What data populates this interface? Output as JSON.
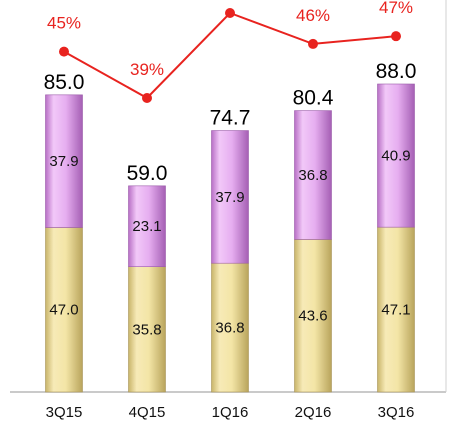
{
  "chart_data": {
    "type": "bar",
    "stacked": true,
    "categories": [
      "3Q15",
      "4Q15",
      "1Q16",
      "2Q16",
      "3Q16"
    ],
    "series": [
      {
        "values": [
          47.0,
          35.8,
          36.8,
          43.6,
          47.1
        ],
        "labels": [
          "47.0",
          "35.8",
          "36.8",
          "43.6",
          "47.1"
        ],
        "color": "#f2e3a0"
      },
      {
        "values": [
          37.9,
          23.1,
          37.9,
          36.8,
          40.9
        ],
        "labels": [
          "37.9",
          "23.1",
          "37.9",
          "36.8",
          "40.9"
        ],
        "color": "#e3a6ee"
      }
    ],
    "totals": [
      85.0,
      59.0,
      74.7,
      80.4,
      88.0
    ],
    "total_labels": [
      "85.0",
      "59.0",
      "74.7",
      "80.4",
      "88.0"
    ],
    "line": {
      "values": [
        45,
        39,
        50,
        46,
        47
      ],
      "labels": [
        "45%",
        "39%",
        "",
        "46%",
        "47%"
      ],
      "color": "#e8231f"
    },
    "ylim": [
      0,
      120
    ],
    "grid": false,
    "title": "",
    "xlabel": "",
    "ylabel": ""
  }
}
